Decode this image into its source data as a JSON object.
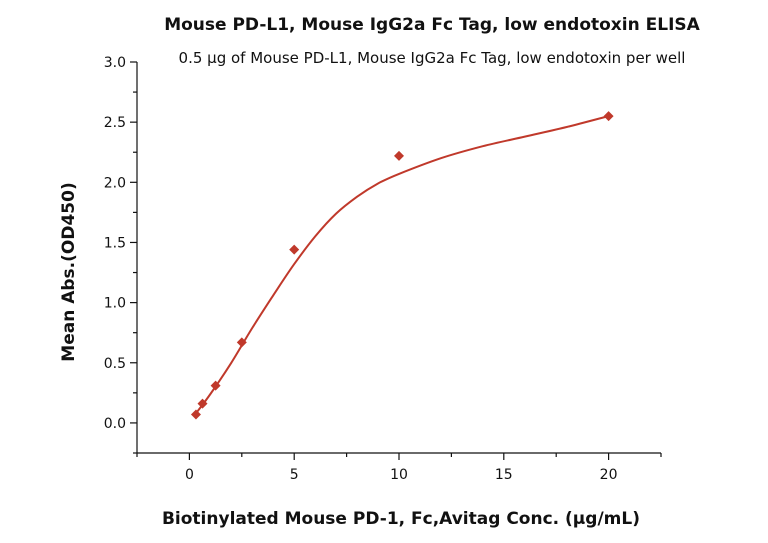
{
  "chart_data": {
    "type": "scatter",
    "title": "Mouse PD-L1, Mouse IgG2a Fc Tag, low endotoxin ELISA",
    "subtitle": "0.5 μg of Mouse PD-L1, Mouse IgG2a Fc Tag, low endotoxin per well",
    "xlabel": "Biotinylated Mouse PD-1, Fc,Avitag Conc. (μg/mL)",
    "ylabel": "Mean Abs.(OD450)",
    "xlim": [
      -2.5,
      22.5
    ],
    "ylim": [
      -0.25,
      3.0
    ],
    "x_ticks": [
      0,
      5,
      10,
      15,
      20
    ],
    "y_ticks": [
      0.0,
      0.5,
      1.0,
      1.5,
      2.0,
      2.5,
      3.0
    ],
    "x_tick_labels": [
      "0",
      "5",
      "10",
      "15",
      "20"
    ],
    "y_tick_labels": [
      "0.0",
      "0.5",
      "1.0",
      "1.5",
      "2.0",
      "2.5",
      "3.0"
    ],
    "grid": false,
    "legend": "none",
    "color": "#c0392b",
    "series": [
      {
        "x": [
          0.313,
          0.625,
          1.25,
          2.5,
          5,
          10,
          20
        ],
        "y": [
          0.07,
          0.16,
          0.31,
          0.67,
          1.44,
          2.22,
          2.55
        ]
      }
    ],
    "fit_curve": {
      "x": [
        0.313,
        1,
        2,
        3,
        4,
        5,
        6,
        7,
        8,
        9,
        10,
        12,
        14,
        16,
        18,
        20
      ],
      "y": [
        0.08,
        0.24,
        0.5,
        0.79,
        1.06,
        1.32,
        1.55,
        1.74,
        1.88,
        1.99,
        2.07,
        2.2,
        2.3,
        2.38,
        2.46,
        2.55
      ]
    }
  }
}
